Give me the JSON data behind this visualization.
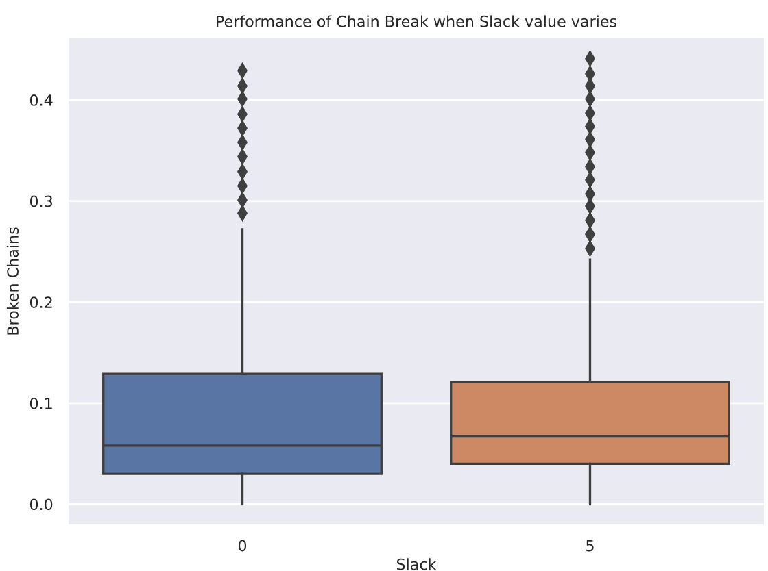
{
  "chart_data": {
    "type": "box",
    "title": "Performance of Chain Break when Slack value varies",
    "xlabel": "Slack",
    "ylabel": "Broken Chains",
    "categories": [
      "0",
      "5"
    ],
    "colors": [
      "#5975a4",
      "#cc8963"
    ],
    "boxes": [
      {
        "low": 0.0,
        "q1": 0.03,
        "median": 0.058,
        "q3": 0.129,
        "high": 0.272,
        "outliers": [
          0.429,
          0.414,
          0.401,
          0.386,
          0.372,
          0.358,
          0.344,
          0.329,
          0.315,
          0.301,
          0.288
        ]
      },
      {
        "low": 0.0,
        "q1": 0.04,
        "median": 0.067,
        "q3": 0.121,
        "high": 0.242,
        "outliers": [
          0.441,
          0.426,
          0.414,
          0.401,
          0.387,
          0.374,
          0.361,
          0.348,
          0.334,
          0.321,
          0.307,
          0.295,
          0.281,
          0.267,
          0.253
        ]
      }
    ],
    "ylim": [
      -0.02,
      0.461
    ],
    "yticks": [
      {
        "value": 0,
        "label": "0.0"
      },
      0.1,
      0.2,
      0.3,
      0.4
    ],
    "grid": "y"
  }
}
